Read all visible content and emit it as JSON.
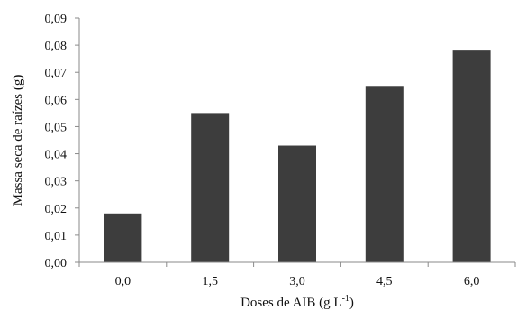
{
  "chart_data": {
    "type": "bar",
    "categories": [
      "0,0",
      "1,5",
      "3,0",
      "4,5",
      "6,0"
    ],
    "values": [
      0.018,
      0.055,
      0.043,
      0.065,
      0.078
    ],
    "title": "",
    "xlabel": "Doses de AIB (g L",
    "xlabel_sup": "-1",
    "xlabel_close": ")",
    "ylabel": "Massa seca de raízes (g)",
    "ylim": [
      0,
      0.09
    ],
    "yticks": [
      0,
      0.01,
      0.02,
      0.03,
      0.04,
      0.05,
      0.06,
      0.07,
      0.08,
      0.09
    ],
    "ytick_labels": [
      "0,00",
      "0,01",
      "0,02",
      "0,03",
      "0,04",
      "0,05",
      "0,06",
      "0,07",
      "0,08",
      "0,09"
    ],
    "grid": false,
    "legend": "none",
    "bar_color": "#3d3d3d"
  }
}
